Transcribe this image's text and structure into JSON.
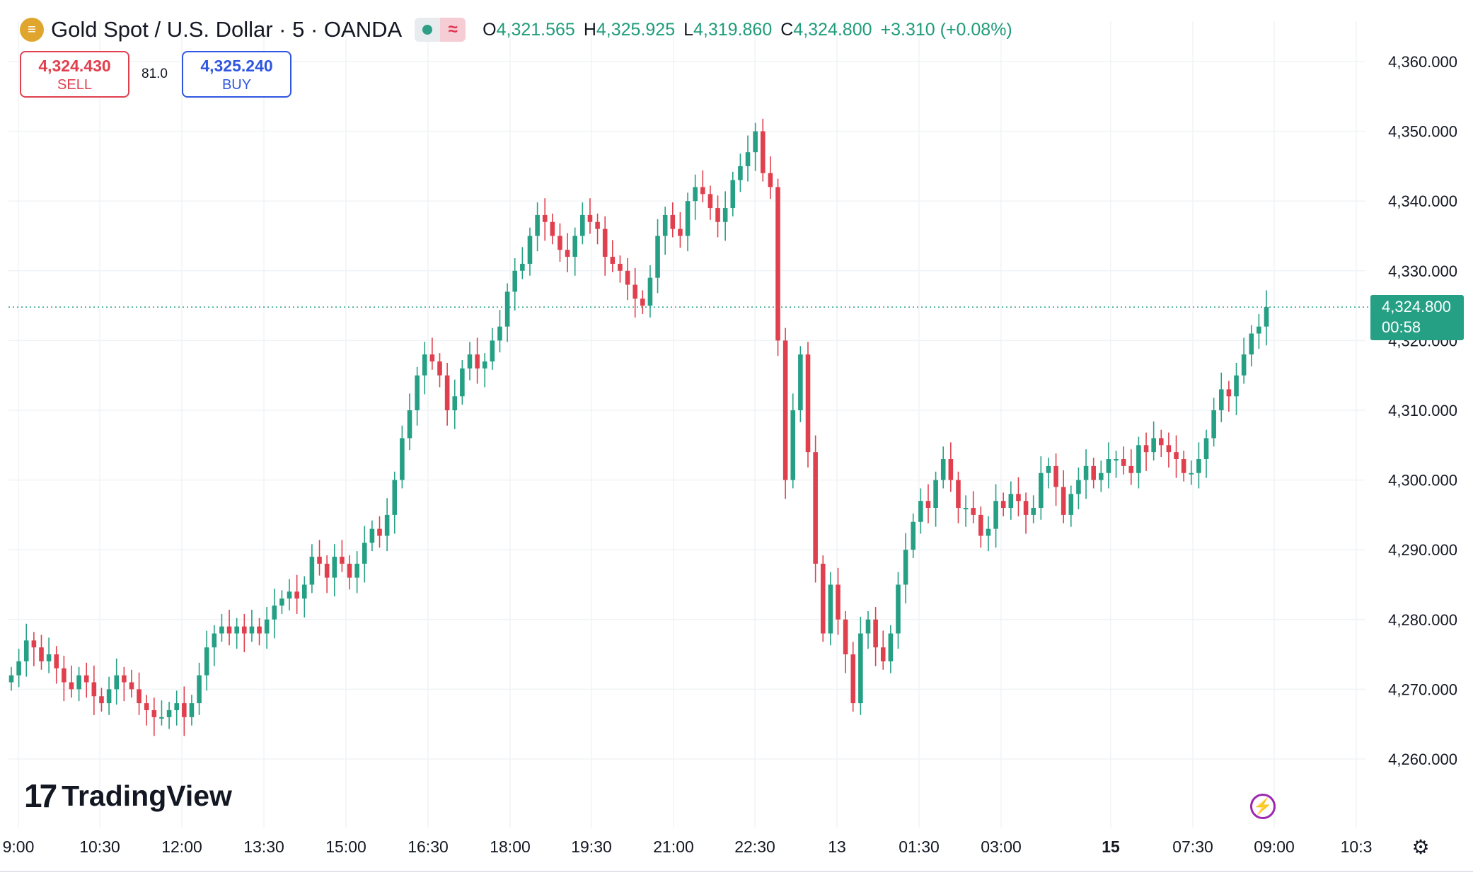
{
  "header": {
    "symbol": "Gold Spot / U.S. Dollar · 5 · OANDA",
    "ohlc": {
      "o_label": "O",
      "o": "4,321.565",
      "h_label": "H",
      "h": "4,325.925",
      "l_label": "L",
      "l": "4,319.860",
      "c_label": "C",
      "c": "4,324.800",
      "change": "+3.310 (+0.08%)"
    }
  },
  "trade": {
    "sell_price": "4,324.430",
    "sell_label": "SELL",
    "spread": "81.0",
    "buy_price": "4,325.240",
    "buy_label": "BUY"
  },
  "last_price": {
    "price": "4,324.800",
    "countdown": "00:58"
  },
  "branding": {
    "name": "TradingView"
  },
  "colors": {
    "up": "#26a085",
    "down": "#e0404e",
    "grid": "#f0f3f6",
    "text": "#131722",
    "buy": "#2f56e0",
    "sell": "#e0404e"
  },
  "icons": {
    "symbol": "gold-coin-icon",
    "status": "market-open-dot-icon",
    "wave": "wave-icon",
    "flash": "lightning-icon",
    "settings": "gear-icon"
  },
  "chart_data": {
    "type": "candlestick",
    "y_ticks": [
      "4,360.000",
      "4,350.000",
      "4,340.000",
      "4,330.000",
      "4,320.000",
      "4,310.000",
      "4,300.000",
      "4,290.000",
      "4,280.000",
      "4,270.000",
      "4,260.000"
    ],
    "y_tick_values": [
      4360,
      4350,
      4340,
      4330,
      4320,
      4310,
      4300,
      4290,
      4280,
      4270,
      4260
    ],
    "x_ticks": [
      "9:00",
      "10:30",
      "12:00",
      "13:30",
      "15:00",
      "16:30",
      "18:00",
      "19:30",
      "21:00",
      "22:30",
      "13",
      "01:30",
      "03:00",
      "15",
      "07:30",
      "09:00",
      "10:3"
    ],
    "ylim": [
      4255,
      4365
    ],
    "last_price": 4324.8,
    "series": [
      {
        "values": [
          4272,
          4274,
          4277,
          4276,
          4274,
          4275,
          4273,
          4271,
          4270,
          4272,
          4271,
          4269,
          4268,
          4270,
          4272,
          4271,
          4270,
          4268,
          4267,
          4266,
          4266,
          4267,
          4268,
          4266,
          4268,
          4272,
          4276,
          4278,
          4279,
          4278,
          4279,
          4278,
          4279,
          4278,
          4280,
          4282,
          4283,
          4284,
          4283,
          4285,
          4289,
          4288,
          4286,
          4289,
          4288,
          4286,
          4288,
          4291,
          4293,
          4292,
          4295,
          4300,
          4306,
          4310,
          4315,
          4318,
          4317,
          4315,
          4310,
          4312,
          4316,
          4318,
          4316,
          4317,
          4320,
          4322,
          4327,
          4330,
          4331,
          4335,
          4338,
          4337,
          4335,
          4333,
          4332,
          4335,
          4338,
          4337,
          4336,
          4332,
          4331,
          4330,
          4328,
          4326,
          4325,
          4329,
          4335,
          4338,
          4336,
          4335,
          4340,
          4342,
          4341,
          4339,
          4337,
          4339,
          4343,
          4345,
          4347,
          4350,
          4344,
          4342,
          4320,
          4300,
          4310,
          4318,
          4304,
          4288,
          4278,
          4285,
          4280,
          4275,
          4268,
          4278,
          4280,
          4276,
          4274,
          4278,
          4285,
          4290,
          4294,
          4297,
          4296,
          4300,
          4303,
          4300,
          4296,
          4296,
          4295,
          4292,
          4293,
          4297,
          4296,
          4298,
          4297,
          4295,
          4296,
          4301,
          4302,
          4299,
          4295,
          4298,
          4300,
          4302,
          4300,
          4301,
          4303,
          4303,
          4302,
          4301,
          4305,
          4304,
          4306,
          4305,
          4304,
          4303,
          4301,
          4301,
          4303,
          4306,
          4310,
          4313,
          4312,
          4315,
          4318,
          4321,
          4322,
          4324.8
        ]
      }
    ]
  }
}
